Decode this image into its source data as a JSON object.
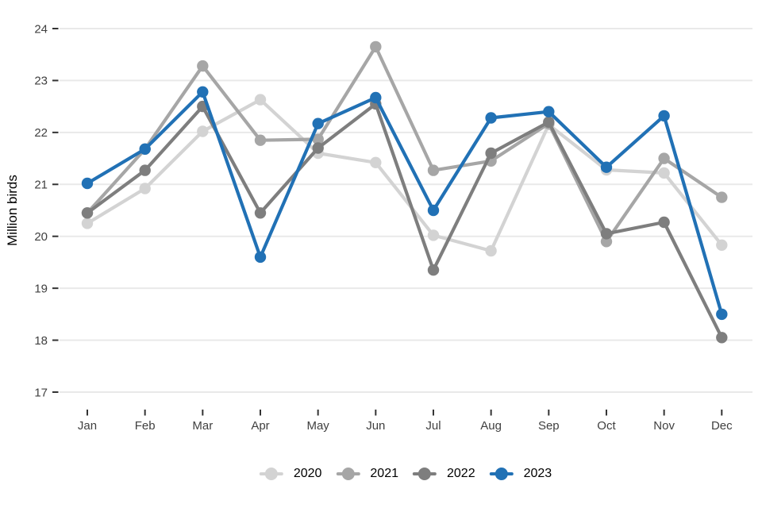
{
  "chart_data": {
    "type": "line",
    "title": "",
    "xlabel": "",
    "ylabel": "Million birds",
    "categories": [
      "Jan",
      "Feb",
      "Mar",
      "Apr",
      "May",
      "Jun",
      "Jul",
      "Aug",
      "Sep",
      "Oct",
      "Nov",
      "Dec"
    ],
    "y_ticks": [
      17,
      18,
      19,
      20,
      21,
      22,
      23,
      24
    ],
    "ylim": [
      17,
      24
    ],
    "grid": "horizontal-only",
    "legend_position": "bottom-center",
    "series": [
      {
        "name": "2020",
        "color": "#d3d3d3",
        "values": [
          20.25,
          20.92,
          22.02,
          22.63,
          21.6,
          21.42,
          20.02,
          19.72,
          22.15,
          21.28,
          21.22,
          19.83
        ]
      },
      {
        "name": "2021",
        "color": "#a6a6a6",
        "values": [
          20.45,
          21.68,
          23.28,
          21.85,
          21.87,
          23.65,
          21.27,
          21.45,
          22.17,
          19.9,
          21.5,
          20.75
        ]
      },
      {
        "name": "2022",
        "color": "#7e7e7e",
        "values": [
          20.45,
          21.27,
          22.5,
          20.45,
          21.7,
          22.55,
          19.35,
          21.6,
          22.2,
          20.05,
          20.27,
          18.05
        ]
      },
      {
        "name": "2023",
        "color": "#2171b5",
        "values": [
          21.02,
          21.68,
          22.78,
          19.6,
          22.17,
          22.67,
          20.5,
          22.28,
          22.4,
          21.33,
          22.32,
          18.5
        ]
      }
    ],
    "colors": {
      "gridline": "#e9e9e9",
      "tick_mark": "#333333",
      "tick_label": "#404040",
      "background": "#ffffff"
    }
  }
}
